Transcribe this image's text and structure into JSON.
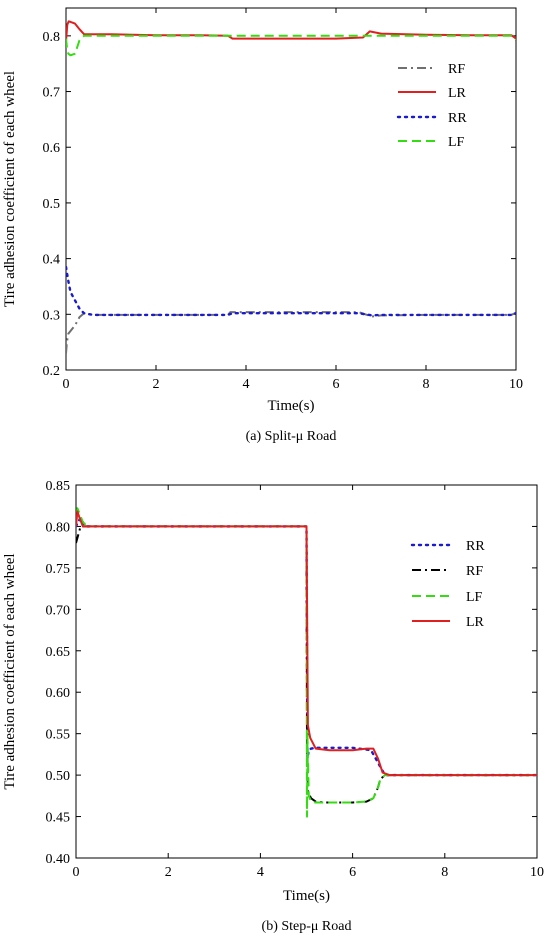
{
  "chart_data": [
    {
      "type": "line",
      "caption": "(a) Split-μ Road",
      "xlabel": "Time(s)",
      "ylabel": "Tire adhesion coefficient of each wheel",
      "xlim": [
        0,
        10
      ],
      "ylim": [
        0.2,
        0.85
      ],
      "xticks": [
        0,
        2,
        4,
        6,
        8,
        10
      ],
      "yticks": [
        0.2,
        0.3,
        0.4,
        0.5,
        0.6,
        0.7,
        0.8
      ],
      "ytick_labels": [
        "0.2",
        "0.3",
        "0.4",
        "0.5",
        "0.6",
        "0.7",
        "0.8"
      ],
      "legend_position": "right",
      "series": [
        {
          "name": "RF",
          "color": "#707070",
          "dash": "dashdot",
          "x": [
            0,
            0.02,
            0.05,
            0.1,
            0.2,
            0.3,
            0.4,
            0.6,
            1,
            2,
            3,
            3.6,
            3.65,
            4,
            5,
            6,
            6.5,
            6.8,
            7,
            8,
            9,
            9.9,
            10
          ],
          "y": [
            0.23,
            0.25,
            0.265,
            0.27,
            0.28,
            0.295,
            0.302,
            0.299,
            0.299,
            0.299,
            0.299,
            0.299,
            0.304,
            0.304,
            0.304,
            0.304,
            0.304,
            0.296,
            0.298,
            0.299,
            0.299,
            0.299,
            0.303
          ]
        },
        {
          "name": "LR",
          "color": "#e02020",
          "dash": "solid",
          "x": [
            0,
            0.03,
            0.06,
            0.1,
            0.2,
            0.3,
            0.4,
            0.6,
            1,
            2,
            3,
            3.6,
            3.7,
            4,
            5,
            6,
            6.6,
            6.75,
            7,
            8,
            9,
            9.9,
            10
          ],
          "y": [
            0.79,
            0.82,
            0.826,
            0.825,
            0.822,
            0.812,
            0.803,
            0.803,
            0.803,
            0.801,
            0.801,
            0.8,
            0.795,
            0.795,
            0.795,
            0.795,
            0.797,
            0.808,
            0.804,
            0.802,
            0.801,
            0.801,
            0.795
          ]
        },
        {
          "name": "RR",
          "color": "#1a1ad0",
          "dash": "dotted",
          "x": [
            0,
            0.05,
            0.1,
            0.2,
            0.3,
            0.4,
            0.6,
            1,
            2,
            3,
            3.6,
            3.7,
            4,
            5,
            6,
            6.5,
            6.8,
            7,
            8,
            9,
            9.9,
            10
          ],
          "y": [
            0.385,
            0.36,
            0.34,
            0.325,
            0.31,
            0.302,
            0.299,
            0.299,
            0.299,
            0.299,
            0.299,
            0.302,
            0.302,
            0.302,
            0.302,
            0.302,
            0.298,
            0.299,
            0.299,
            0.299,
            0.299,
            0.302
          ]
        },
        {
          "name": "LF",
          "color": "#33dd11",
          "dash": "dashed",
          "x": [
            0,
            0.02,
            0.05,
            0.1,
            0.2,
            0.3,
            0.4,
            0.6,
            1,
            2,
            3,
            4,
            5,
            6,
            7,
            8,
            9,
            9.9,
            10
          ],
          "y": [
            0.795,
            0.78,
            0.768,
            0.765,
            0.768,
            0.792,
            0.8,
            0.8,
            0.8,
            0.8,
            0.8,
            0.8,
            0.8,
            0.8,
            0.8,
            0.8,
            0.8,
            0.8,
            0.793
          ]
        }
      ]
    },
    {
      "type": "line",
      "caption": "(b) Step-μ Road",
      "xlabel": "Time(s)",
      "ylabel": "Tire adhesion coefficient of each wheel",
      "xlim": [
        0,
        10
      ],
      "ylim": [
        0.4,
        0.85
      ],
      "xticks": [
        0,
        2,
        4,
        6,
        8,
        10
      ],
      "yticks": [
        0.4,
        0.45,
        0.5,
        0.55,
        0.6,
        0.65,
        0.7,
        0.75,
        0.8,
        0.85
      ],
      "ytick_labels": [
        "0.40",
        "0.45",
        "0.50",
        "0.55",
        "0.60",
        "0.65",
        "0.70",
        "0.75",
        "0.80",
        "0.85"
      ],
      "legend_position": "right",
      "series": [
        {
          "name": "RR",
          "color": "#1a1ad0",
          "dash": "dotted",
          "x": [
            0,
            0.05,
            0.1,
            0.2,
            5,
            5.02,
            5.05,
            5.1,
            5.2,
            5.4,
            6,
            6.4,
            6.5,
            6.6,
            6.7,
            8,
            10
          ],
          "y": [
            0.8,
            0.806,
            0.81,
            0.8,
            0.8,
            0.52,
            0.53,
            0.532,
            0.533,
            0.533,
            0.533,
            0.53,
            0.52,
            0.51,
            0.5,
            0.5,
            0.5
          ]
        },
        {
          "name": "RF",
          "color": "#000000",
          "dash": "dashdot",
          "x": [
            0,
            0.05,
            0.1,
            0.2,
            5,
            5.01,
            5.03,
            5.1,
            5.2,
            5.4,
            6,
            6.3,
            6.45,
            6.55,
            6.6,
            6.7,
            8,
            10
          ],
          "y": [
            0.78,
            0.79,
            0.8,
            0.8,
            0.8,
            0.545,
            0.48,
            0.472,
            0.468,
            0.467,
            0.467,
            0.468,
            0.472,
            0.485,
            0.495,
            0.5,
            0.5,
            0.5
          ]
        },
        {
          "name": "LF",
          "color": "#33dd11",
          "dash": "dashed",
          "x": [
            0,
            0.03,
            0.08,
            0.15,
            0.25,
            5,
            5.01,
            5.02,
            5.05,
            5.1,
            5.2,
            5.4,
            6,
            6.3,
            6.45,
            6.55,
            6.6,
            6.7,
            8,
            10
          ],
          "y": [
            0.8,
            0.822,
            0.815,
            0.805,
            0.8,
            0.8,
            0.45,
            0.548,
            0.475,
            0.468,
            0.467,
            0.467,
            0.467,
            0.468,
            0.472,
            0.485,
            0.495,
            0.5,
            0.5,
            0.5
          ]
        },
        {
          "name": "LR",
          "color": "#e02020",
          "dash": "solid",
          "x": [
            0,
            0.03,
            0.08,
            0.15,
            0.25,
            4.99,
            5.0,
            5.03,
            5.08,
            5.2,
            5.5,
            6,
            6.3,
            6.45,
            6.55,
            6.65,
            6.8,
            8,
            10
          ],
          "y": [
            0.8,
            0.818,
            0.81,
            0.8,
            0.8,
            0.8,
            0.8,
            0.56,
            0.545,
            0.532,
            0.53,
            0.53,
            0.532,
            0.532,
            0.52,
            0.503,
            0.5,
            0.5,
            0.5
          ]
        }
      ]
    }
  ]
}
